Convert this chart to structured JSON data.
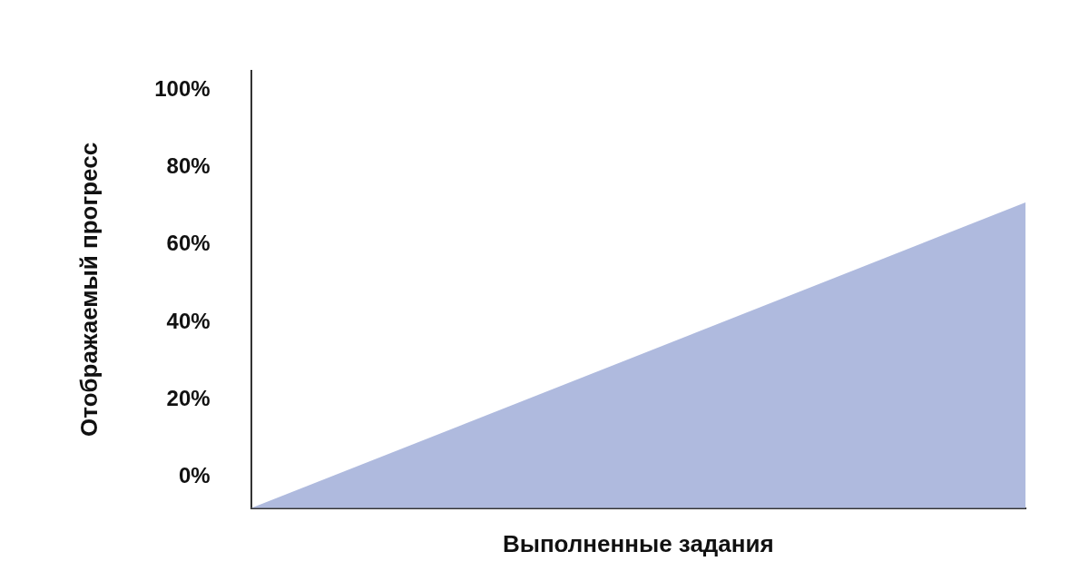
{
  "chart_data": {
    "type": "area",
    "xlabel": "Выполненные задания",
    "ylabel": "Отображаемый прогресс",
    "categories": [
      null,
      null
    ],
    "series": [
      {
        "color": "#afbade",
        "values": [
          -8,
          71
        ]
      }
    ],
    "relative": false,
    "ylim": [
      -8,
      105
    ],
    "yticks": [
      {
        "value": 0,
        "label": "0%"
      },
      {
        "value": 20,
        "label": "20%"
      },
      {
        "value": 40,
        "label": "40%"
      },
      {
        "value": 60,
        "label": "60%"
      },
      {
        "value": 80,
        "label": "80%"
      },
      {
        "value": 100,
        "label": "100%"
      }
    ],
    "grid": false,
    "legend": false,
    "marker": "none"
  }
}
